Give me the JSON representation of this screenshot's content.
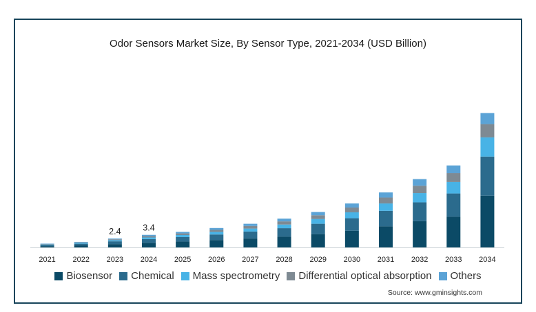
{
  "chart_data": {
    "type": "bar",
    "stacked": true,
    "title": "Odor Sensors Market Size, By Sensor Type, 2021-2034  (USD Billion)",
    "xlabel": "",
    "ylabel": "",
    "categories": [
      "2021",
      "2022",
      "2023",
      "2024",
      "2025",
      "2026",
      "2027",
      "2028",
      "2029",
      "2030",
      "2031",
      "2032",
      "2033",
      "2034"
    ],
    "series": [
      {
        "name": "Biosensor",
        "color": "#0b4a66",
        "values": [
          0.35,
          0.55,
          0.9,
          1.25,
          1.6,
          2.0,
          2.4,
          2.9,
          3.6,
          4.5,
          5.7,
          7.1,
          8.3,
          14.0
        ]
      },
      {
        "name": "Chemical",
        "color": "#2b6b8d",
        "values": [
          0.3,
          0.45,
          0.75,
          1.0,
          1.2,
          1.5,
          1.9,
          2.3,
          2.8,
          3.4,
          4.2,
          5.1,
          6.3,
          10.6
        ]
      },
      {
        "name": "Mass spectrometry",
        "color": "#48b3e6",
        "values": [
          0.15,
          0.2,
          0.3,
          0.45,
          0.55,
          0.7,
          0.8,
          1.0,
          1.3,
          1.6,
          2.0,
          2.5,
          3.1,
          5.2
        ]
      },
      {
        "name": "Differential optical absorption",
        "color": "#7e8a93",
        "values": [
          0.12,
          0.15,
          0.25,
          0.35,
          0.45,
          0.55,
          0.7,
          0.85,
          1.0,
          1.3,
          1.6,
          2.0,
          2.4,
          3.6
        ]
      },
      {
        "name": "Others",
        "color": "#5ba3d6",
        "values": [
          0.1,
          0.15,
          0.2,
          0.35,
          0.4,
          0.5,
          0.6,
          0.75,
          0.9,
          1.1,
          1.4,
          1.8,
          2.1,
          3.0
        ]
      }
    ],
    "data_labels": {
      "2023": "2.4",
      "2024": "3.4"
    },
    "ylim": [
      0,
      43
    ],
    "grid": false,
    "legend_position": "bottom"
  },
  "source": "Source: www.gminsights.com"
}
